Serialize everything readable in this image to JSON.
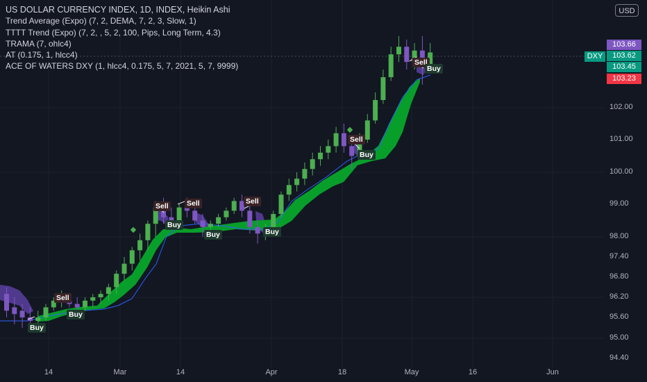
{
  "legend": {
    "symbol": "US DOLLAR CURRENCY INDEX, 1D, INDEX, Heikin Ashi",
    "indicators": [
      "Trend Average (Expo) (7, 2, DEMA, 7, 2, 3, Slow, 1)",
      "TTTT Trend (Expo) (7, 2, , 5, 2, 100, Pips, Long Term, 4.3)",
      "TRAMA (7, ohlc4)",
      "AT (0.175, 1, hlcc4)",
      "ACE OF WATERS DXY (1, hlcc4, 0.175, 5, 7, 2021, 5, 7, 9999)"
    ]
  },
  "currency_button": "USD",
  "symbol_tag": "DXY",
  "price_tags": [
    {
      "value": "103.66",
      "color": "#7e57c2"
    },
    {
      "value": "103.62",
      "color": "#089981"
    },
    {
      "value": "103.45",
      "color": "#089981"
    },
    {
      "value": "103.23",
      "color": "#f23645"
    }
  ],
  "y_axis_labels": [
    "102.00",
    "101.00",
    "100.00",
    "99.00",
    "98.00",
    "97.40",
    "96.80",
    "96.20",
    "95.60",
    "95.00",
    "94.40"
  ],
  "x_axis_labels": [
    "14",
    "Mar",
    "14",
    "Apr",
    "18",
    "May",
    "16",
    "Jun"
  ],
  "signals": [
    {
      "type": "buy",
      "label": "Buy"
    },
    {
      "type": "sell",
      "label": "Sell"
    },
    {
      "type": "buy",
      "label": "Buy"
    },
    {
      "type": "sell",
      "label": "Sell"
    },
    {
      "type": "buy",
      "label": "Buy"
    },
    {
      "type": "sell",
      "label": "Sell"
    },
    {
      "type": "buy",
      "label": "Buy"
    },
    {
      "type": "sell",
      "label": "Sell"
    },
    {
      "type": "buy",
      "label": "Buy"
    },
    {
      "type": "sell",
      "label": "Sell"
    },
    {
      "type": "buy",
      "label": "Buy"
    },
    {
      "type": "sell",
      "label": "Sell"
    },
    {
      "type": "buy",
      "label": "Buy"
    }
  ],
  "colors": {
    "background": "#131722",
    "bull": "#4caf50",
    "bear": "#7e57c2",
    "trend_cloud": "#089e2a",
    "bear_cloud": "#5b3fa0",
    "trama": "#2962ff"
  },
  "chart_data": {
    "type": "candlestick",
    "style": "Heikin Ashi",
    "ylim": [
      94.2,
      104.2
    ],
    "y_ticks": [
      102.0,
      101.0,
      100.0,
      99.0,
      98.0,
      97.4,
      96.8,
      96.2,
      95.6,
      95.0,
      94.4
    ],
    "candles": [
      [
        96.3,
        96.5,
        95.6,
        95.8
      ],
      [
        95.9,
        96.2,
        95.4,
        95.7
      ],
      [
        95.8,
        96.0,
        95.3,
        95.6
      ],
      [
        95.6,
        95.9,
        95.3,
        95.5
      ],
      [
        95.5,
        95.8,
        95.3,
        95.6
      ],
      [
        95.6,
        96.0,
        95.5,
        95.9
      ],
      [
        95.9,
        96.2,
        95.8,
        96.1
      ],
      [
        96.1,
        96.4,
        95.9,
        96.2
      ],
      [
        96.1,
        96.3,
        95.9,
        96.0
      ],
      [
        96.0,
        96.2,
        95.8,
        95.9
      ],
      [
        95.9,
        96.2,
        95.8,
        96.1
      ],
      [
        96.1,
        96.3,
        95.9,
        96.2
      ],
      [
        96.2,
        96.4,
        96.0,
        96.3
      ],
      [
        96.3,
        96.6,
        96.1,
        96.5
      ],
      [
        96.5,
        97.0,
        96.3,
        96.9
      ],
      [
        96.9,
        97.4,
        96.7,
        97.2
      ],
      [
        97.2,
        97.7,
        97.0,
        97.6
      ],
      [
        97.6,
        98.1,
        97.3,
        97.9
      ],
      [
        97.9,
        98.5,
        97.6,
        98.4
      ],
      [
        98.4,
        99.1,
        98.0,
        98.9
      ],
      [
        98.9,
        99.2,
        98.4,
        98.6
      ],
      [
        98.6,
        98.9,
        98.2,
        98.5
      ],
      [
        98.5,
        99.0,
        98.4,
        98.9
      ],
      [
        98.9,
        99.2,
        98.6,
        98.8
      ],
      [
        98.8,
        99.0,
        98.4,
        98.5
      ],
      [
        98.5,
        98.7,
        98.0,
        98.3
      ],
      [
        98.3,
        98.5,
        98.1,
        98.4
      ],
      [
        98.4,
        98.7,
        98.3,
        98.6
      ],
      [
        98.6,
        98.9,
        98.5,
        98.8
      ],
      [
        98.8,
        99.2,
        98.7,
        99.1
      ],
      [
        99.1,
        99.3,
        98.6,
        98.8
      ],
      [
        98.8,
        99.0,
        98.1,
        98.3
      ],
      [
        98.3,
        98.5,
        97.8,
        98.1
      ],
      [
        98.1,
        98.4,
        97.9,
        98.3
      ],
      [
        98.3,
        98.8,
        98.2,
        98.7
      ],
      [
        98.7,
        99.4,
        98.6,
        99.3
      ],
      [
        99.3,
        99.8,
        99.1,
        99.6
      ],
      [
        99.6,
        100.0,
        99.4,
        99.8
      ],
      [
        99.8,
        100.3,
        99.6,
        100.1
      ],
      [
        100.1,
        100.6,
        99.9,
        100.4
      ],
      [
        100.4,
        100.8,
        100.2,
        100.6
      ],
      [
        100.6,
        101.0,
        100.4,
        100.8
      ],
      [
        100.8,
        101.4,
        100.6,
        101.2
      ],
      [
        101.2,
        101.5,
        100.6,
        100.8
      ],
      [
        100.8,
        101.0,
        100.1,
        100.5
      ],
      [
        100.5,
        101.2,
        100.4,
        101.0
      ],
      [
        101.0,
        101.8,
        100.9,
        101.6
      ],
      [
        101.6,
        102.4,
        101.5,
        102.2
      ],
      [
        102.2,
        103.0,
        102.1,
        102.8
      ],
      [
        102.8,
        103.6,
        102.7,
        103.4
      ],
      [
        103.4,
        103.9,
        103.2,
        103.6
      ],
      [
        103.6,
        103.8,
        103.0,
        103.2
      ],
      [
        103.2,
        103.7,
        103.0,
        103.5
      ],
      [
        103.5,
        103.9,
        102.6,
        103.1
      ],
      [
        103.1,
        103.7,
        102.9,
        103.45
      ]
    ]
  }
}
